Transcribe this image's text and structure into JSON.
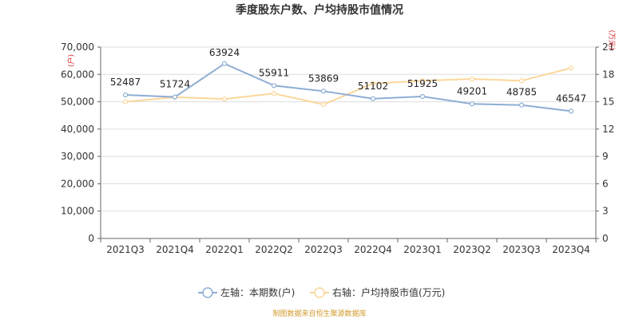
{
  "chart_data": {
    "type": "line",
    "title": "季度股东户数、户均持股市值情况",
    "categories": [
      "2021Q3",
      "2021Q4",
      "2022Q1",
      "2022Q2",
      "2022Q3",
      "2022Q4",
      "2023Q1",
      "2023Q2",
      "2023Q3",
      "2023Q4"
    ],
    "left_axis": {
      "unit": "(户)",
      "ylim": [
        0,
        70000
      ],
      "ticks": [
        "0",
        "10,000",
        "20,000",
        "30,000",
        "40,000",
        "50,000",
        "60,000",
        "70,000"
      ]
    },
    "right_axis": {
      "unit": "(万元)",
      "ylim": [
        0,
        21
      ],
      "ticks": [
        "0",
        "3",
        "6",
        "9",
        "12",
        "15",
        "18",
        "21"
      ]
    },
    "series": [
      {
        "name": "左轴：本期数(户)",
        "axis": "left",
        "color": "#8eadd4",
        "values": [
          52487,
          51724,
          63924,
          55911,
          53869,
          51102,
          51925,
          49201,
          48785,
          46547
        ],
        "labels": [
          "52487",
          "51724",
          "63924",
          "55911",
          "53869",
          "51102",
          "51925",
          "49201",
          "48785",
          "46547"
        ]
      },
      {
        "name": "右轴：户均持股市值(万元)",
        "axis": "right",
        "color": "#fbd79a",
        "values": [
          15.0,
          15.5,
          15.3,
          15.9,
          14.7,
          17.0,
          17.3,
          17.5,
          17.3,
          18.7
        ]
      }
    ],
    "grid": true,
    "legend": "bottom"
  },
  "source": "制图数据来自恒生聚源数据库"
}
